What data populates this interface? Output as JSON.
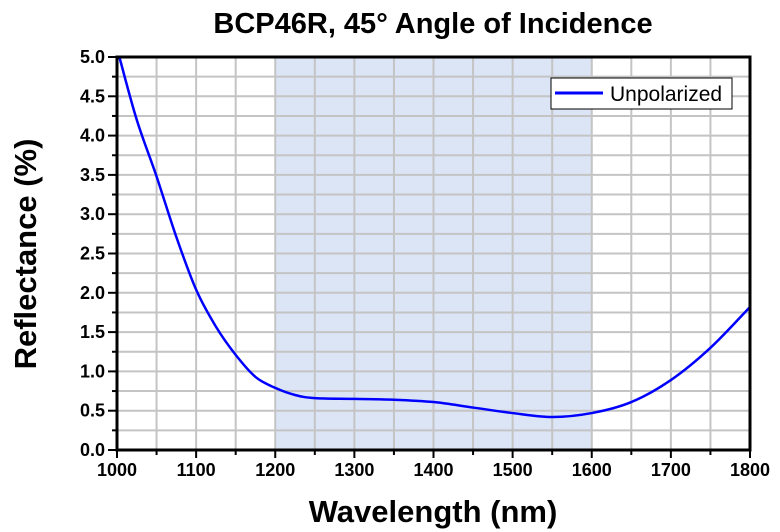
{
  "chart_data": {
    "type": "line",
    "title": "BCP46R, 45° Angle of Incidence",
    "xlabel": "Wavelength (nm)",
    "ylabel": "Reflectance (%)",
    "xlim": [
      1000,
      1800
    ],
    "ylim": [
      0,
      5.0
    ],
    "xticks": [
      "1000",
      "1100",
      "1200",
      "1300",
      "1400",
      "1500",
      "1600",
      "1700",
      "1800"
    ],
    "yticks": [
      "0.0",
      "0.5",
      "1.0",
      "1.5",
      "2.0",
      "2.5",
      "3.0",
      "3.5",
      "4.0",
      "4.5",
      "5.0"
    ],
    "grid": true,
    "legend_position": "top-right",
    "highlight_band": {
      "from": 1200,
      "to": 1600,
      "color": "#dce5f6"
    },
    "series": [
      {
        "name": "Unpolarized",
        "color": "#0000ff",
        "x": [
          1003,
          1025,
          1050,
          1075,
          1100,
          1125,
          1150,
          1175,
          1200,
          1225,
          1250,
          1300,
          1350,
          1400,
          1450,
          1500,
          1550,
          1600,
          1650,
          1700,
          1750,
          1800
        ],
        "y": [
          5.0,
          4.2,
          3.48,
          2.71,
          2.04,
          1.57,
          1.21,
          0.93,
          0.79,
          0.7,
          0.66,
          0.65,
          0.64,
          0.61,
          0.54,
          0.47,
          0.42,
          0.47,
          0.61,
          0.89,
          1.3,
          1.82
        ]
      }
    ]
  }
}
